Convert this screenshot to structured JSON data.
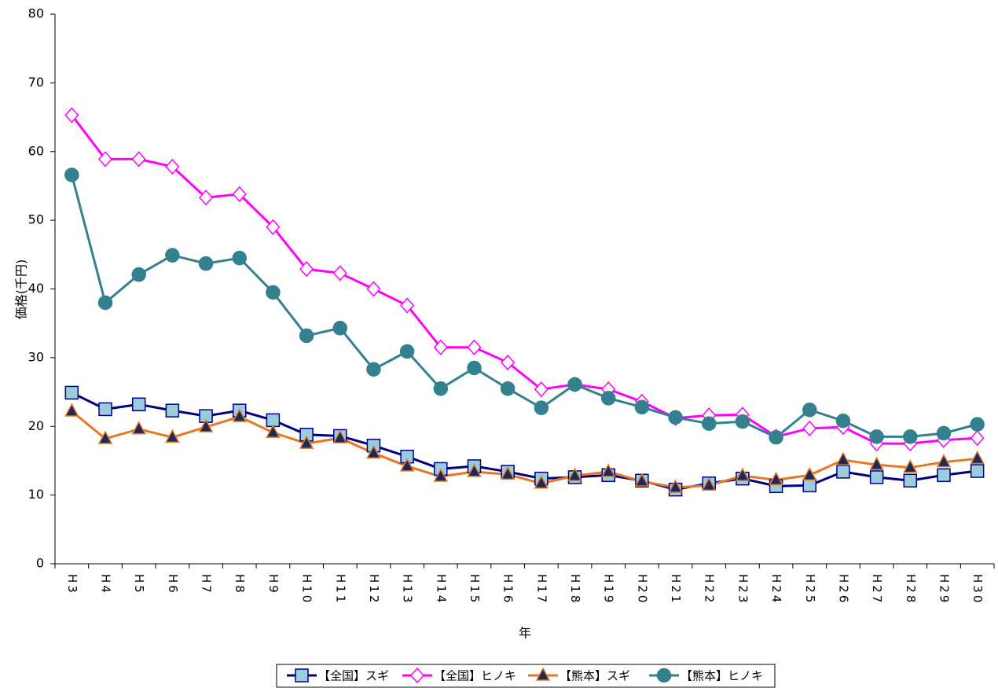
{
  "chart_data": {
    "type": "line",
    "y_label": "価格(千円)",
    "x_label": "年",
    "categories": [
      "H3",
      "H4",
      "H5",
      "H6",
      "H7",
      "H8",
      "H9",
      "H10",
      "H11",
      "H12",
      "H13",
      "H14",
      "H15",
      "H16",
      "H17",
      "H18",
      "H19",
      "H20",
      "H21",
      "H22",
      "H23",
      "H24",
      "H25",
      "H26",
      "H27",
      "H28",
      "H29",
      "H30"
    ],
    "ylim": [
      0,
      80
    ],
    "yticks": [
      0,
      10,
      20,
      30,
      40,
      50,
      60,
      70,
      80
    ],
    "legend": "bottom",
    "series": [
      {
        "name": "【全国】スギ",
        "color": "#000080",
        "marker": "square",
        "marker_fill": "#99ccdd",
        "values": [
          24.9,
          22.5,
          23.2,
          22.3,
          21.5,
          22.3,
          20.9,
          18.8,
          18.6,
          17.2,
          15.6,
          13.8,
          14.2,
          13.4,
          12.4,
          12.6,
          12.9,
          12.1,
          10.8,
          11.7,
          12.4,
          11.3,
          11.4,
          13.4,
          12.6,
          12.1,
          12.9,
          13.5
        ]
      },
      {
        "name": "【全国】ヒノキ",
        "color": "#ff00ff",
        "marker": "diamond",
        "marker_fill": "#ffffff",
        "values": [
          65.3,
          58.9,
          58.9,
          57.8,
          53.3,
          53.8,
          49.0,
          42.9,
          42.3,
          40.0,
          37.6,
          31.5,
          31.5,
          29.3,
          25.4,
          26.1,
          25.4,
          23.6,
          21.2,
          21.6,
          21.7,
          18.5,
          19.7,
          19.9,
          17.5,
          17.5,
          18.0,
          18.3
        ]
      },
      {
        "name": "【熊本】スギ",
        "color": "#e87722",
        "marker": "triangle",
        "marker_fill": "#1a2a5a",
        "values": [
          22.2,
          18.2,
          19.6,
          18.4,
          19.9,
          21.4,
          19.1,
          17.5,
          18.3,
          16.1,
          14.2,
          12.7,
          13.4,
          13.0,
          11.7,
          12.8,
          13.4,
          12.0,
          11.1,
          11.4,
          12.8,
          12.2,
          12.9,
          15.1,
          14.4,
          14.0,
          14.8,
          15.3
        ]
      },
      {
        "name": "【熊本】ヒノキ",
        "color": "#33808f",
        "marker": "circle",
        "marker_fill": "#33808f",
        "values": [
          56.6,
          38.0,
          42.1,
          44.9,
          43.7,
          44.5,
          39.5,
          33.2,
          34.3,
          28.3,
          30.9,
          25.5,
          28.5,
          25.5,
          22.7,
          26.1,
          24.1,
          22.8,
          21.3,
          20.4,
          20.7,
          18.4,
          22.4,
          20.8,
          18.5,
          18.5,
          19.0,
          20.3
        ]
      }
    ]
  }
}
